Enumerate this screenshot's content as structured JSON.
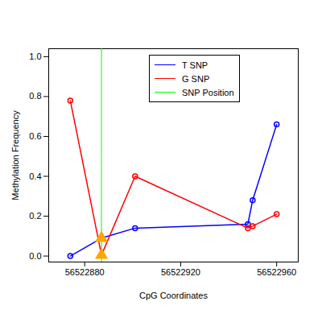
{
  "chart_data": {
    "type": "line",
    "x_label": "CpG Coordinates",
    "y_label": "Methylation Frequency",
    "x": [
      56522874,
      56522887,
      56522901,
      56522948,
      56522950,
      56522960
    ],
    "series": [
      {
        "name": "T SNP",
        "color": "#0000ff",
        "values": [
          0.0,
          0.09,
          0.14,
          0.16,
          0.28,
          0.66
        ]
      },
      {
        "name": "G SNP",
        "color": "#ff0000",
        "values": [
          0.78,
          0.005,
          0.4,
          0.14,
          0.15,
          0.21
        ]
      }
    ],
    "snp": {
      "name": "SNP Position",
      "x": 56522887,
      "color": "#00ff00"
    },
    "xlim": [
      56522865,
      56522969
    ],
    "xticks": [
      56522880,
      56522920,
      56522960
    ],
    "ylim": [
      -0.03,
      1.04
    ],
    "yticks": [
      {
        "value": 0,
        "label": "0.0"
      },
      {
        "value": 0.2,
        "label": "0.2"
      },
      {
        "value": 0.4,
        "label": "0.4"
      },
      {
        "value": 0.6,
        "label": "0.6"
      },
      {
        "value": 0.8,
        "label": "0.8"
      },
      {
        "value": 1.0,
        "label": "1.0"
      }
    ],
    "legend": "right",
    "marker": "circle"
  }
}
